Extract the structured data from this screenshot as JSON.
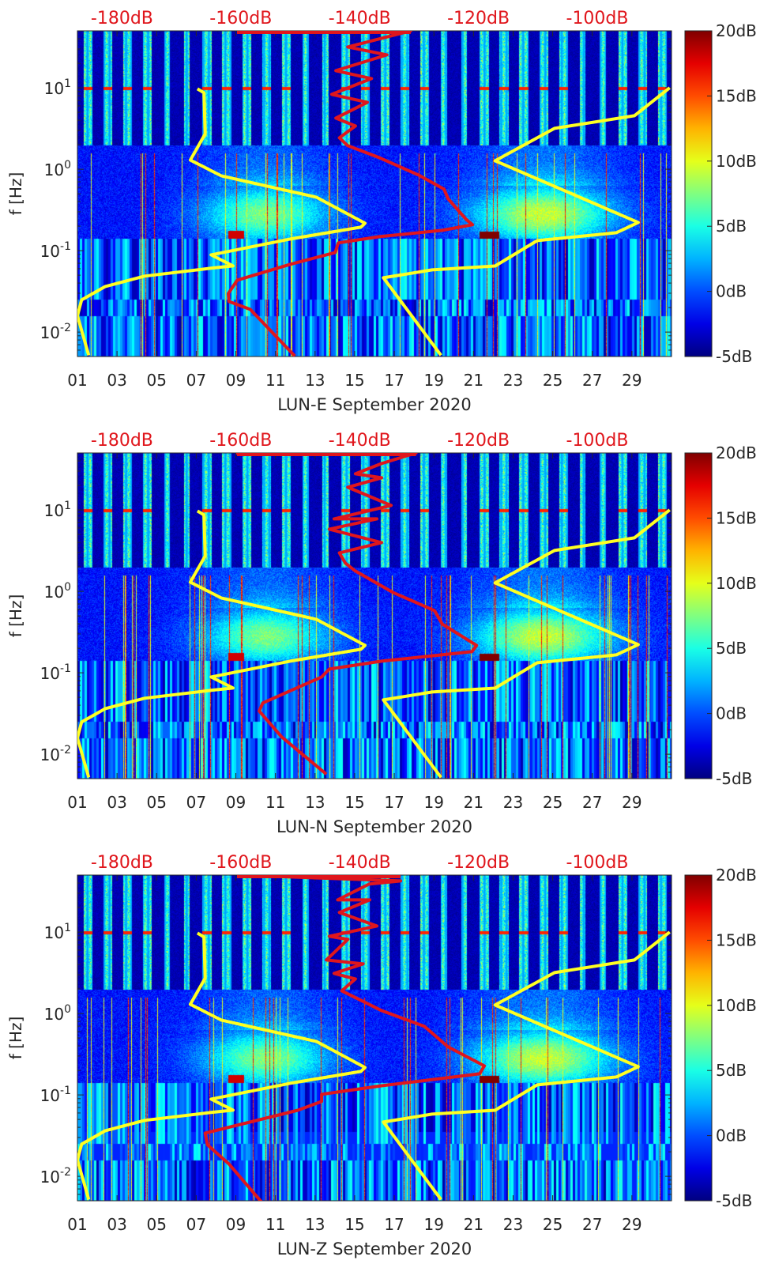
{
  "chart_data": [
    {
      "type": "heatmap",
      "title": "",
      "xlabel": "LUN-E September 2020",
      "ylabel": "f [Hz]",
      "x_unit": "day of month",
      "xlim": [
        1,
        31
      ],
      "xticks": [
        "01",
        "03",
        "05",
        "07",
        "09",
        "11",
        "13",
        "15",
        "17",
        "19",
        "21",
        "23",
        "25",
        "27",
        "29"
      ],
      "ylog10lim": [
        -2.3,
        1.7
      ],
      "yticks": [
        {
          "exp": "1",
          "log10": 1
        },
        {
          "exp": "0",
          "log10": 0
        },
        {
          "exp": "-1",
          "log10": -1
        },
        {
          "exp": "-2",
          "log10": -2
        }
      ],
      "top_axis_labels": [
        "-180dB",
        "-160dB",
        "-140dB",
        "-120dB",
        "-100dB"
      ],
      "top_axis_values": [
        -180,
        -160,
        -140,
        -120,
        -100
      ],
      "colorbar": {
        "labels": [
          "20dB",
          "15dB",
          "10dB",
          "5dB",
          "0dB",
          "-5dB"
        ],
        "values": [
          20,
          15,
          10,
          5,
          0,
          -5
        ],
        "range": [
          -5,
          20
        ],
        "colormap": "jet"
      },
      "curves": {
        "median_psd_red": {
          "color": "#e0161c",
          "db": [
            -160.6,
            -131.4,
            -142.0,
            -135.4,
            -144.0,
            -138.0,
            -144.7,
            -138.7,
            -144.0,
            -140.7,
            -143.4,
            -142.0,
            -136.7,
            -130.1,
            -125.8,
            -125.1,
            -122.1,
            -121.0,
            -126.1,
            -136.7,
            -143.6,
            -144.1,
            -151.7,
            -160.6,
            -162.1,
            -162.0,
            -158.4,
            -150.9
          ],
          "log10_f": [
            1.7,
            1.7,
            1.502,
            1.405,
            1.211,
            1.114,
            0.919,
            0.822,
            0.628,
            0.531,
            0.386,
            0.289,
            0.143,
            -0.07,
            -0.245,
            -0.362,
            -0.614,
            -0.682,
            -0.75,
            -0.828,
            -0.905,
            -1.022,
            -1.168,
            -1.362,
            -1.527,
            -1.624,
            -1.721,
            -2.294
          ]
        }
      }
    },
    {
      "type": "heatmap",
      "title": "",
      "xlabel": "LUN-N September 2020",
      "ylabel": "f [Hz]",
      "xlim": [
        1,
        31
      ],
      "xticks": [
        "01",
        "03",
        "05",
        "07",
        "09",
        "11",
        "13",
        "15",
        "17",
        "19",
        "21",
        "23",
        "25",
        "27",
        "29"
      ],
      "ylog10lim": [
        -2.3,
        1.7
      ],
      "yticks": [
        {
          "exp": "1",
          "log10": 1
        },
        {
          "exp": "0",
          "log10": 0
        },
        {
          "exp": "-1",
          "log10": -1
        },
        {
          "exp": "-2",
          "log10": -2
        }
      ],
      "top_axis_labels": [
        "-180dB",
        "-160dB",
        "-140dB",
        "-120dB",
        "-100dB"
      ],
      "top_axis_values": [
        -180,
        -160,
        -140,
        -120,
        -100
      ],
      "colorbar": {
        "labels": [
          "20dB",
          "15dB",
          "10dB",
          "5dB",
          "0dB",
          "-5dB"
        ],
        "values": [
          20,
          15,
          10,
          5,
          0,
          -5
        ],
        "range": [
          -5,
          20
        ],
        "colormap": "jet"
      },
      "curves": {
        "median_psd_red": {
          "color": "#e0161c",
          "db": [
            -160.8,
            -130.5,
            -136.3,
            -140.7,
            -136.3,
            -142.0,
            -134.7,
            -144.3,
            -137.1,
            -145.1,
            -136.3,
            -143.4,
            -142.4,
            -140.7,
            -134.4,
            -127.4,
            -126.1,
            -120.3,
            -121.1,
            -136.3,
            -145.1,
            -146.4,
            -156.3,
            -156.9,
            -153.1,
            -145.6
          ],
          "log10_f": [
            1.7,
            1.7,
            1.57,
            1.444,
            1.395,
            1.279,
            1.055,
            0.89,
            0.89,
            0.764,
            0.599,
            0.473,
            0.347,
            0.25,
            -0.013,
            -0.236,
            -0.401,
            -0.663,
            -0.741,
            -0.857,
            -0.954,
            -1.051,
            -1.371,
            -1.469,
            -1.789,
            -2.246
          ]
        }
      }
    },
    {
      "type": "heatmap",
      "title": "",
      "xlabel": "LUN-Z September 2020",
      "ylabel": "f [Hz]",
      "xlim": [
        1,
        31
      ],
      "xticks": [
        "01",
        "03",
        "05",
        "07",
        "09",
        "11",
        "13",
        "15",
        "17",
        "19",
        "21",
        "23",
        "25",
        "27",
        "29"
      ],
      "ylog10lim": [
        -2.3,
        1.7
      ],
      "yticks": [
        {
          "exp": "1",
          "log10": 1
        },
        {
          "exp": "0",
          "log10": 0
        },
        {
          "exp": "-1",
          "log10": -1
        },
        {
          "exp": "-2",
          "log10": -2
        }
      ],
      "top_axis_labels": [
        "-180dB",
        "-160dB",
        "-140dB",
        "-120dB",
        "-100dB"
      ],
      "top_axis_values": [
        -180,
        -160,
        -140,
        -120,
        -100
      ],
      "colorbar": {
        "labels": [
          "20dB",
          "15dB",
          "10dB",
          "5dB",
          "0dB",
          "-5dB"
        ],
        "values": [
          20,
          15,
          10,
          5,
          0,
          -5
        ],
        "range": [
          -5,
          20
        ],
        "colormap": "jet"
      },
      "curves": {
        "median_psd_red": {
          "color": "#e0161c",
          "db": [
            -160.6,
            -133.1,
            -138.4,
            -143.7,
            -138.3,
            -143.4,
            -137.1,
            -145.1,
            -142.0,
            -145.6,
            -139.4,
            -144.3,
            -140.7,
            -143.0,
            -136.3,
            -129.1,
            -125.1,
            -119.0,
            -119.8,
            -136.3,
            -146.4,
            -146.4,
            -150.4,
            -166.0,
            -165.6,
            -162.0,
            -156.3
          ],
          "log10_f": [
            1.7,
            1.628,
            1.589,
            1.395,
            1.395,
            1.24,
            1.075,
            0.949,
            0.91,
            0.657,
            0.609,
            0.492,
            0.424,
            0.279,
            0.036,
            -0.158,
            -0.411,
            -0.644,
            -0.741,
            -0.887,
            -0.993,
            -1.081,
            -1.188,
            -1.469,
            -1.615,
            -1.848,
            -2.333
          ]
        }
      }
    }
  ],
  "noise_models": {
    "low_yellow": {
      "color": "#ffff22",
      "db": [
        -167.3,
        -166.2,
        -166.0,
        -168.5,
        -163.3,
        -147.3,
        -139.1,
        -139.8,
        -151.7,
        -165.0,
        -161.3,
        -165.0,
        -176.2,
        -182.8,
        -186.8,
        -187.5,
        -185.6
      ],
      "log10_f": [
        0.987,
        0.939,
        0.434,
        0.113,
        -0.081,
        -0.343,
        -0.663,
        -0.712,
        -0.857,
        -1.051,
        -1.187,
        -1.216,
        -1.313,
        -1.44,
        -1.605,
        -1.799,
        -2.284
      ]
    },
    "high_yellow": {
      "color": "#ffff22",
      "db": [
        -87.8,
        -93.75,
        -107.2,
        -117.2,
        -93.1,
        -96.8,
        -110.1,
        -117.2,
        -127.8,
        -136.0,
        -126.3
      ],
      "log10_f": [
        1.0,
        0.657,
        0.502,
        0.104,
        -0.653,
        -0.78,
        -0.877,
        -1.188,
        -1.236,
        -1.333,
        -2.284
      ]
    }
  }
}
